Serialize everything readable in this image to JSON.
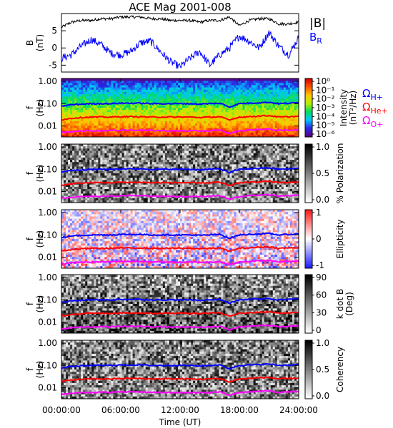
{
  "chart_data": [
    {
      "type": "line",
      "title": "ACE Mag 2001-008",
      "ylabel": "B",
      "ylabel_unit": "(nT)",
      "ylim": [
        -7,
        10
      ],
      "yticks": [
        "5",
        "0",
        "-5"
      ],
      "yticks_val": [
        5,
        0,
        -5
      ],
      "series": [
        {
          "name": "|B|",
          "color": "#000000",
          "x": [
            0,
            1,
            2,
            3,
            4,
            5,
            6,
            7,
            8,
            9,
            10,
            11,
            12,
            13,
            14,
            15,
            16,
            17,
            18,
            19,
            20,
            21,
            22,
            23,
            24
          ],
          "y": [
            6.0,
            7.5,
            8.0,
            8.0,
            8.5,
            8.5,
            9.0,
            9.0,
            9.0,
            8.5,
            8.5,
            8.0,
            8.0,
            8.0,
            7.5,
            8.0,
            8.0,
            9.0,
            6.5,
            8.0,
            8.5,
            8.5,
            7.0,
            7.0,
            7.5
          ]
        },
        {
          "name": "B",
          "name_sub": "R",
          "color": "#0000ff",
          "x": [
            0,
            1,
            2,
            3,
            4,
            5,
            6,
            7,
            8,
            9,
            10,
            11,
            12,
            13,
            14,
            15,
            16,
            17,
            18,
            19,
            20,
            21,
            22,
            23,
            24
          ],
          "y": [
            -3.0,
            -2.0,
            0.5,
            2.5,
            1.0,
            -1.5,
            -2.0,
            -1.0,
            1.5,
            2.0,
            -1.0,
            -4.0,
            -5.5,
            -3.0,
            -1.0,
            -5.0,
            -2.0,
            0.0,
            3.5,
            2.0,
            0.0,
            4.5,
            0.5,
            -2.0,
            3.0
          ]
        }
      ]
    },
    {
      "type": "heatmap",
      "ylabel": "f",
      "ylabel_unit": "(Hz)",
      "yticks": [
        "1.00",
        "0.10",
        "0.01"
      ],
      "colorbar_label": "Intensity",
      "colorbar_unit": "(nT²/Hz)",
      "colorbar_ticks": [
        "10⁰",
        "10⁻¹",
        "10⁻²",
        "10⁻³",
        "10⁻⁴",
        "10⁻⁵",
        "10⁻⁶"
      ],
      "colorbar_scale": "rainbow",
      "gyro_legend": [
        {
          "label": "Ω",
          "sub": "H+",
          "color": "#0000ff"
        },
        {
          "label": "Ω",
          "sub": "He+",
          "color": "#ff0000"
        },
        {
          "label": "Ω",
          "sub": "O+",
          "color": "#ff00ff"
        }
      ]
    },
    {
      "type": "heatmap",
      "ylabel": "f",
      "ylabel_unit": "(Hz)",
      "yticks": [
        "1.00",
        "0.10",
        "0.01"
      ],
      "colorbar_label": "% Polarization",
      "colorbar_ticks": [
        "1.0",
        "0.5",
        "0.0"
      ],
      "colorbar_scale": "grayscale"
    },
    {
      "type": "heatmap",
      "ylabel": "f",
      "ylabel_unit": "(Hz)",
      "yticks": [
        "1.00",
        "0.10",
        "0.01"
      ],
      "colorbar_label": "Ellipticity",
      "colorbar_ticks": [
        "1",
        "0",
        "-1"
      ],
      "colorbar_scale": "blue-white-red"
    },
    {
      "type": "heatmap",
      "ylabel": "f",
      "ylabel_unit": "(Hz)",
      "yticks": [
        "1.00",
        "0.10",
        "0.01"
      ],
      "colorbar_label": "k dot B",
      "colorbar_unit": "(Deg)",
      "colorbar_ticks": [
        "90",
        "60",
        "30",
        "0"
      ],
      "colorbar_scale": "grayscale"
    },
    {
      "type": "heatmap",
      "ylabel": "f",
      "ylabel_unit": "(Hz)",
      "yticks": [
        "1.00",
        "0.10",
        "0.01"
      ],
      "colorbar_label": "Coherency",
      "colorbar_ticks": [
        "1.0",
        "0.5",
        "0.0"
      ],
      "colorbar_scale": "grayscale",
      "xticks": [
        "00:00:00",
        "06:00:00",
        "12:00:00",
        "18:00:00",
        "24:00:00"
      ],
      "xlabel": "Time (UT)"
    }
  ],
  "gyro_curves": {
    "x_hours": [
      0,
      1,
      2,
      3,
      4,
      5,
      6,
      7,
      8,
      9,
      10,
      11,
      12,
      13,
      14,
      15,
      16,
      17,
      18,
      19,
      20,
      21,
      22,
      23,
      24
    ],
    "H_plus_Hz": [
      0.075,
      0.09,
      0.095,
      0.1,
      0.1,
      0.1,
      0.105,
      0.105,
      0.105,
      0.1,
      0.1,
      0.1,
      0.1,
      0.1,
      0.095,
      0.1,
      0.105,
      0.07,
      0.1,
      0.105,
      0.11,
      0.115,
      0.1,
      0.105,
      0.11
    ],
    "He_plus_Hz": [
      0.019,
      0.022,
      0.024,
      0.025,
      0.025,
      0.025,
      0.026,
      0.026,
      0.026,
      0.025,
      0.025,
      0.025,
      0.025,
      0.025,
      0.024,
      0.025,
      0.026,
      0.018,
      0.025,
      0.026,
      0.028,
      0.029,
      0.025,
      0.026,
      0.027
    ],
    "O_plus_Hz": [
      0.005,
      0.0055,
      0.006,
      0.006,
      0.0062,
      0.0062,
      0.0065,
      0.0065,
      0.0065,
      0.0062,
      0.0062,
      0.006,
      0.006,
      0.006,
      0.006,
      0.006,
      0.0065,
      0.0045,
      0.006,
      0.0065,
      0.007,
      0.0072,
      0.0062,
      0.0065,
      0.0068
    ]
  }
}
